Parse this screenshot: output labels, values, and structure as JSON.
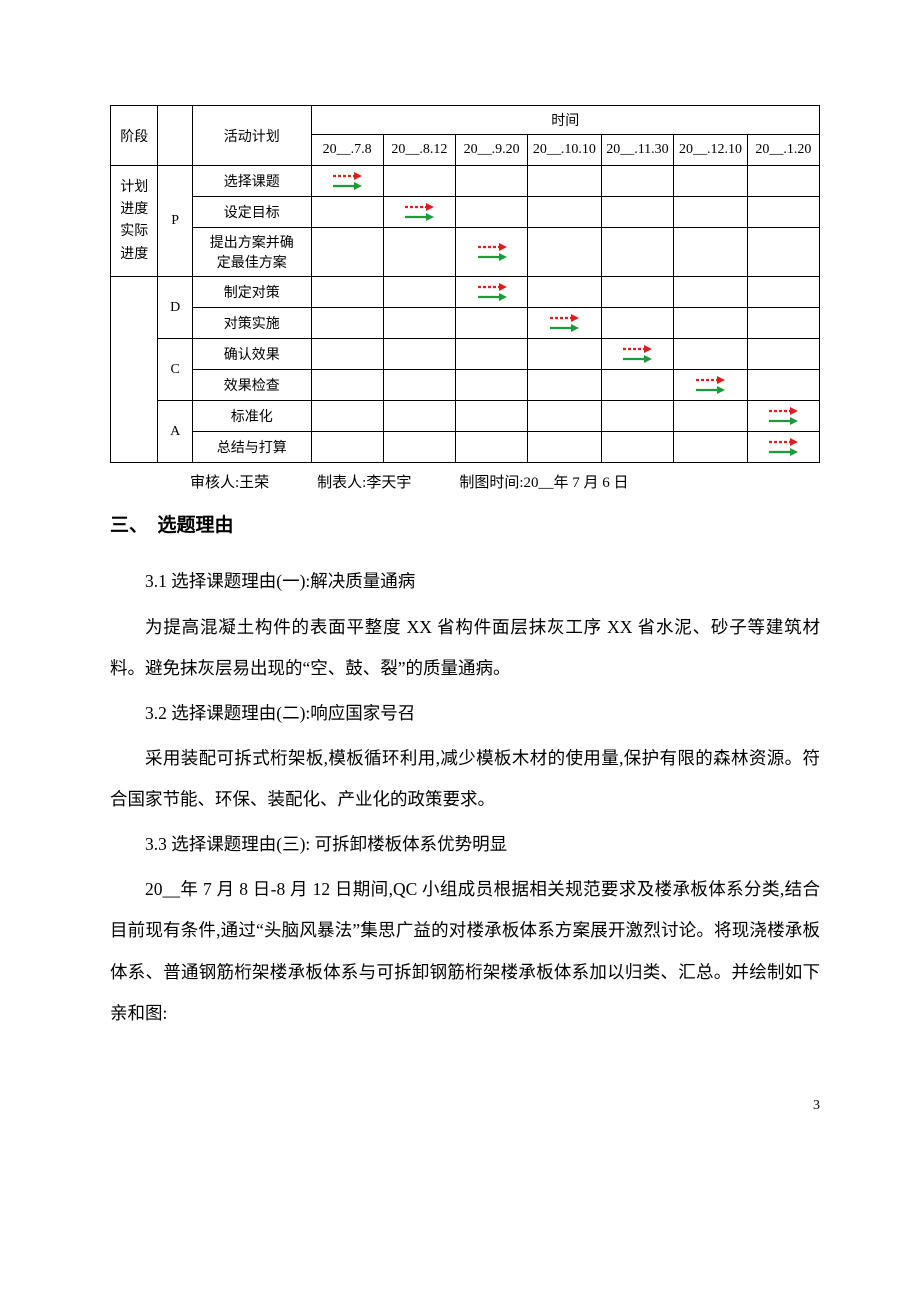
{
  "table": {
    "headers": {
      "stage": "阶段",
      "activity": "活动计划",
      "time": "时间"
    },
    "time_columns": [
      "20__.7.8",
      "20__.8.12",
      "20__.9.20",
      "20__.10.10",
      "20__.11.30",
      "20__.12.10",
      "20__.1.20"
    ],
    "group_label": "计划\n进度\n实际\n进度",
    "phases": {
      "P": "P",
      "D": "D",
      "C": "C",
      "A": "A"
    },
    "activities": {
      "a1": "选择课题",
      "a2": "设定目标",
      "a3": "提出方案并确\n定最佳方案",
      "a4": "制定对策",
      "a5": "对策实施",
      "a6": "确认效果",
      "a7": "效果检查",
      "a8": "标准化",
      "a9": "总结与打算"
    },
    "arrow_colors": {
      "planned_stroke": "#e21b1b",
      "planned_fill": "#e21b1b",
      "actual_stroke": "#1a9c3a",
      "actual_fill": "#1a9c3a"
    },
    "schedule": [
      [
        true,
        false,
        false,
        false,
        false,
        false,
        false
      ],
      [
        false,
        true,
        false,
        false,
        false,
        false,
        false
      ],
      [
        false,
        false,
        true,
        false,
        false,
        false,
        false
      ],
      [
        false,
        false,
        true,
        false,
        false,
        false,
        false
      ],
      [
        false,
        false,
        false,
        true,
        false,
        false,
        false
      ],
      [
        false,
        false,
        false,
        false,
        true,
        false,
        false
      ],
      [
        false,
        false,
        false,
        false,
        false,
        true,
        false
      ],
      [
        false,
        false,
        false,
        false,
        false,
        false,
        true
      ],
      [
        false,
        false,
        false,
        false,
        false,
        false,
        true
      ]
    ]
  },
  "credits": {
    "reviewer": "审核人:王荣",
    "preparer": "制表人:李天宇",
    "date": "制图时间:20__年 7 月 6 日"
  },
  "section": {
    "heading": "三、　选题理由",
    "p1_title": "3.1 选择课题理由(一):解决质量通病",
    "p1_body": "为提高混凝土构件的表面平整度 XX 省构件面层抹灰工序 XX 省水泥、砂子等建筑材料。避免抹灰层易出现的“空、鼓、裂”的质量通病。",
    "p2_title": "3.2 选择课题理由(二):响应国家号召",
    "p2_body": "采用装配可拆式桁架板,模板循环利用,减少模板木材的使用量,保护有限的森林资源。符合国家节能、环保、装配化、产业化的政策要求。",
    "p3_title": "3.3 选择课题理由(三): 可拆卸楼板体系优势明显",
    "p3_body": "20__年 7 月 8 日-8 月 12 日期间,QC 小组成员根据相关规范要求及楼承板体系分类,结合目前现有条件,通过“头脑风暴法”集思广益的对楼承板体系方案展开激烈讨论。将现浇楼承板体系、普通钢筋桁架楼承板体系与可拆卸钢筋桁架楼承板体系加以归类、汇总。并绘制如下亲和图:"
  },
  "page_number": "3"
}
